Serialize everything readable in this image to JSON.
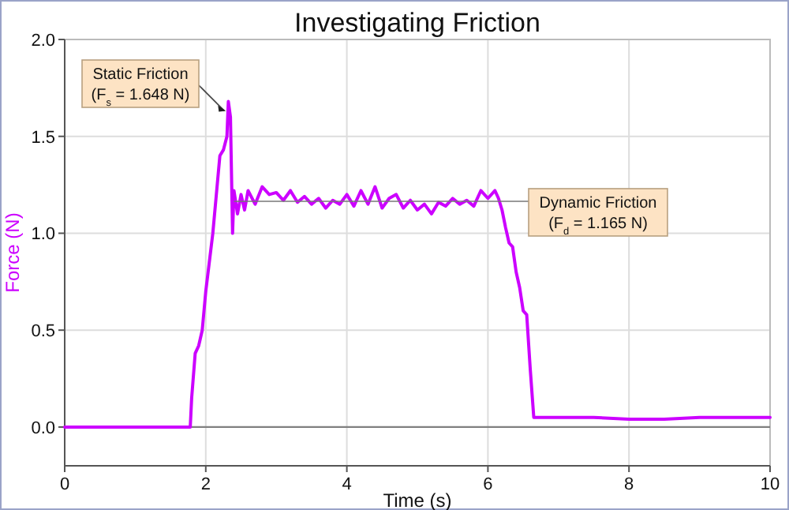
{
  "chart_data": {
    "type": "line",
    "title": "Investigating Friction",
    "xlabel": "Time (s)",
    "ylabel": "Force (N)",
    "xlim": [
      0,
      10
    ],
    "xticks": [
      0,
      2,
      4,
      6,
      8,
      10
    ],
    "ylim": [
      -0.2,
      2.0
    ],
    "yticks": [
      {
        "value": 0,
        "label": "0.0"
      },
      0.5,
      {
        "value": 1,
        "label": "1.0"
      },
      1.5,
      {
        "value": 2,
        "label": "2.0"
      }
    ],
    "grid": true,
    "marker": "none",
    "line_style": "solid",
    "ref_lines": [
      {
        "axis": "y",
        "value": 0,
        "color": "#808080"
      }
    ],
    "annotations": [
      {
        "text": "Static Friction\n(F$_{s}$ = 1.648 N)",
        "x": 2.33,
        "y": 1.648
      },
      {
        "text": "Dynamic Friction\n(F$_{d}$ = 1.165 N)",
        "x": 2.4,
        "y": 1.165
      }
    ],
    "series": [
      {
        "color": "#cc00ff",
        "x": [
          0,
          0.3,
          0.6,
          0.9,
          1.2,
          1.5,
          1.78,
          1.8,
          1.85,
          1.9,
          1.95,
          2.0,
          2.05,
          2.1,
          2.15,
          2.2,
          2.25,
          2.3,
          2.32,
          2.35,
          2.38,
          2.4,
          2.45,
          2.5,
          2.55,
          2.6,
          2.7,
          2.8,
          2.9,
          3.0,
          3.1,
          3.2,
          3.3,
          3.4,
          3.5,
          3.6,
          3.7,
          3.8,
          3.9,
          4.0,
          4.1,
          4.2,
          4.3,
          4.4,
          4.5,
          4.6,
          4.7,
          4.8,
          4.9,
          5.0,
          5.1,
          5.2,
          5.3,
          5.4,
          5.5,
          5.6,
          5.7,
          5.8,
          5.9,
          6.0,
          6.1,
          6.15,
          6.2,
          6.25,
          6.3,
          6.35,
          6.4,
          6.45,
          6.5,
          6.55,
          6.6,
          6.65,
          7.0,
          7.5,
          8.0,
          8.5,
          9.0,
          9.5,
          10.0
        ],
        "values": [
          0.0,
          0.0,
          0.0,
          0.0,
          0.0,
          0.0,
          0.0,
          0.15,
          0.38,
          0.42,
          0.5,
          0.7,
          0.85,
          1.0,
          1.2,
          1.4,
          1.43,
          1.5,
          1.68,
          1.6,
          1.0,
          1.22,
          1.1,
          1.2,
          1.12,
          1.22,
          1.15,
          1.24,
          1.2,
          1.21,
          1.17,
          1.22,
          1.16,
          1.19,
          1.15,
          1.18,
          1.13,
          1.17,
          1.15,
          1.2,
          1.14,
          1.22,
          1.15,
          1.24,
          1.13,
          1.18,
          1.2,
          1.13,
          1.17,
          1.12,
          1.15,
          1.1,
          1.16,
          1.14,
          1.18,
          1.15,
          1.17,
          1.14,
          1.22,
          1.18,
          1.22,
          1.18,
          1.12,
          1.03,
          0.95,
          0.93,
          0.8,
          0.72,
          0.6,
          0.58,
          0.3,
          0.05,
          0.05,
          0.05,
          0.04,
          0.04,
          0.05,
          0.05,
          0.05
        ]
      }
    ]
  }
}
